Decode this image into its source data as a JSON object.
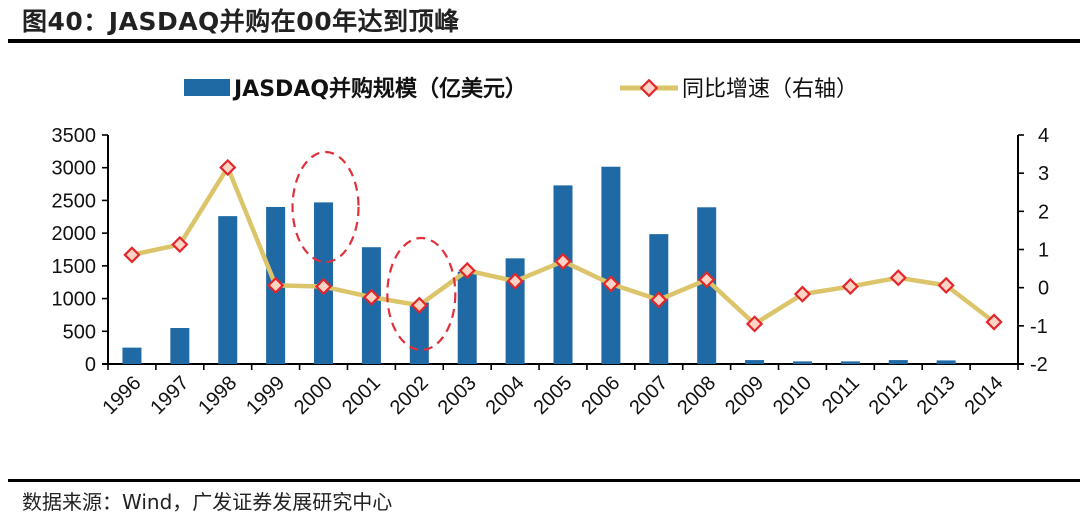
{
  "header": {
    "figure_label": "图40：",
    "title": "JASDAQ并购在00年达到顶峰"
  },
  "footer": {
    "source": "数据来源：Wind，广发证券发展研究中心"
  },
  "colors": {
    "bar": "#1f6aa5",
    "line": "#dcc46a",
    "marker_stroke": "#e3262b",
    "marker_fill": "#ffd4c4",
    "highlight_ellipse": "#e0303a",
    "axis": "#000000"
  },
  "chart_data": {
    "type": "bar+line",
    "title": "JASDAQ并购在00年达到顶峰",
    "categories": [
      "1996",
      "1997",
      "1998",
      "1999",
      "2000",
      "2001",
      "2002",
      "2003",
      "2004",
      "2005",
      "2006",
      "2007",
      "2008",
      "2009",
      "2010",
      "2011",
      "2012",
      "2013",
      "2014"
    ],
    "series": [
      {
        "name": "JASDAQ并购规模（亿美元）",
        "type": "bar",
        "axis": "left",
        "values": [
          250,
          550,
          2260,
          2400,
          2470,
          1785,
          940,
          1410,
          1615,
          2730,
          3015,
          1985,
          2395,
          60,
          40,
          40,
          60,
          55,
          null
        ]
      },
      {
        "name": "同比增速（右轴）",
        "type": "line",
        "axis": "right",
        "marker": "diamond",
        "values": [
          0.86,
          1.13,
          3.15,
          0.06,
          0.03,
          -0.25,
          -0.46,
          0.45,
          0.17,
          0.69,
          0.1,
          -0.32,
          0.21,
          -0.95,
          -0.17,
          0.03,
          0.26,
          0.06,
          -0.9
        ]
      }
    ],
    "left_axis": {
      "min": 0,
      "max": 3500,
      "ticks": [
        "0",
        "500",
        "1000",
        "1500",
        "2000",
        "2500",
        "3000",
        "3500"
      ]
    },
    "right_axis": {
      "min": -2,
      "max": 4,
      "ticks": [
        "-2",
        "-1",
        "0",
        "1",
        "2",
        "3",
        "4"
      ]
    },
    "xlabel": "",
    "ylabel": "",
    "grid": false,
    "legend_position": "top-center",
    "annotations": [
      {
        "type": "dashed-ellipse",
        "category": "2000",
        "description": "highlight peak year"
      },
      {
        "type": "dashed-ellipse",
        "category": "2002",
        "description": "highlight decline"
      }
    ]
  }
}
